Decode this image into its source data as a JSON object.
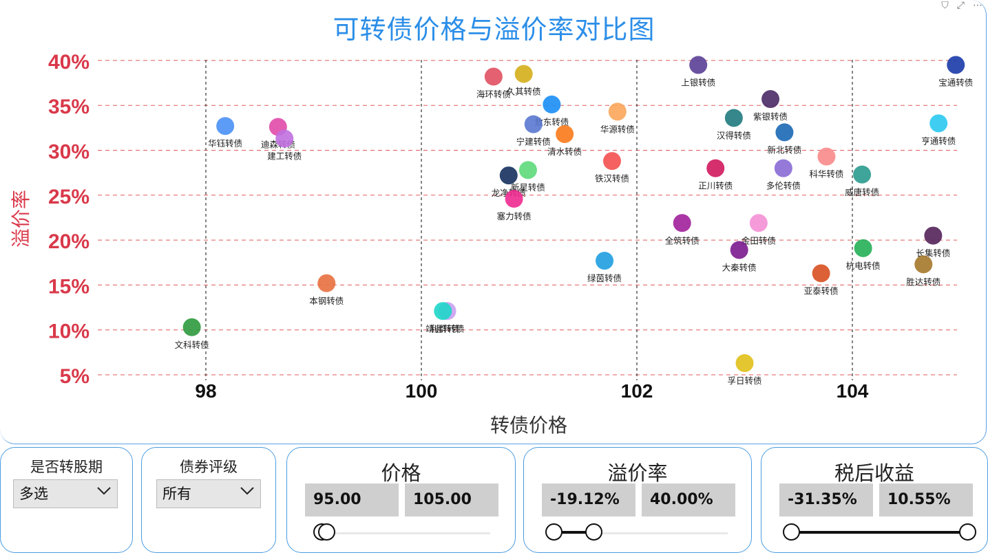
{
  "title": "可转债价格与溢价率对比图",
  "toolbar": {
    "filter_icon": "filter-icon",
    "focus_icon": "focus-mode-icon",
    "more_icon": "more-options-icon"
  },
  "colors": {
    "title": "#2b8ee8",
    "axis_y": "#d9394a",
    "grid": "#e05a5a",
    "vline": "#333333",
    "panel_border": "#4a9be0"
  },
  "chart_data": {
    "type": "scatter",
    "title": "可转债价格与溢价率对比图",
    "xlabel": "转债价格",
    "ylabel": "溢价率",
    "xlim": [
      96.5,
      105
    ],
    "ylim": [
      4,
      41
    ],
    "x_ticks": [
      98,
      100,
      102,
      104
    ],
    "x_tick_labels": [
      "98",
      "100",
      "102",
      "104"
    ],
    "y_ticks": [
      5,
      10,
      15,
      20,
      25,
      30,
      35,
      40
    ],
    "y_tick_labels": [
      "5%",
      "10%",
      "15%",
      "20%",
      "25%",
      "30%",
      "35%",
      "40%"
    ],
    "grid": true,
    "points": [
      {
        "name": "文科转债",
        "x": 97.87,
        "y": 10.3,
        "color": "#2e9a3d"
      },
      {
        "name": "华钰转债",
        "x": 98.18,
        "y": 32.7,
        "color": "#4a90f5"
      },
      {
        "name": "迪森转债",
        "x": 98.67,
        "y": 32.6,
        "color": "#e04aa8"
      },
      {
        "name": "建工转债",
        "x": 98.73,
        "y": 31.3,
        "color": "#c070e0"
      },
      {
        "name": "本钢转债",
        "x": 99.12,
        "y": 15.2,
        "color": "#e87040"
      },
      {
        "name": "利群转债",
        "x": 100.24,
        "y": 12.1,
        "color": "#c9a0f0"
      },
      {
        "name": "靖远转债",
        "x": 100.2,
        "y": 12.1,
        "color": "#1ed6c8"
      },
      {
        "name": "海环转债",
        "x": 100.67,
        "y": 38.2,
        "color": "#e05060"
      },
      {
        "name": "久其转债",
        "x": 100.95,
        "y": 38.5,
        "color": "#d4ae1a"
      },
      {
        "name": "敖东转债",
        "x": 101.21,
        "y": 35.1,
        "color": "#1a8ef5"
      },
      {
        "name": "宁建转债",
        "x": 101.04,
        "y": 32.9,
        "color": "#5a78d0"
      },
      {
        "name": "清水转债",
        "x": 101.33,
        "y": 31.8,
        "color": "#f97a1a"
      },
      {
        "name": "华源转债",
        "x": 101.82,
        "y": 34.3,
        "color": "#fba65a"
      },
      {
        "name": "新星转债",
        "x": 100.99,
        "y": 27.8,
        "color": "#5ed97a"
      },
      {
        "name": "龙净转债",
        "x": 100.81,
        "y": 27.2,
        "color": "#15305e"
      },
      {
        "name": "铁汉转债",
        "x": 101.77,
        "y": 28.8,
        "color": "#f45050"
      },
      {
        "name": "塞力转债",
        "x": 100.86,
        "y": 24.6,
        "color": "#ee2a90"
      },
      {
        "name": "绿茵转债",
        "x": 101.7,
        "y": 17.7,
        "color": "#1f9ee0"
      },
      {
        "name": "上银转债",
        "x": 102.57,
        "y": 39.5,
        "color": "#5a3f96"
      },
      {
        "name": "宝通转债",
        "x": 104.96,
        "y": 39.5,
        "color": "#1a3aa8"
      },
      {
        "name": "紫银转债",
        "x": 103.24,
        "y": 35.7,
        "color": "#4a2a66"
      },
      {
        "name": "汉得转债",
        "x": 102.9,
        "y": 33.6,
        "color": "#1f7a7e"
      },
      {
        "name": "新北转债",
        "x": 103.37,
        "y": 32.0,
        "color": "#1a68b5"
      },
      {
        "name": "亨通转债",
        "x": 104.8,
        "y": 33.0,
        "color": "#2ac8f0"
      },
      {
        "name": "科华转债",
        "x": 103.76,
        "y": 29.3,
        "color": "#f98a8a"
      },
      {
        "name": "正川转债",
        "x": 102.73,
        "y": 28.0,
        "color": "#d0185e"
      },
      {
        "name": "多伦转债",
        "x": 103.36,
        "y": 28.0,
        "color": "#8a6ad5"
      },
      {
        "name": "威唐转债",
        "x": 104.09,
        "y": 27.3,
        "color": "#2a9a8e"
      },
      {
        "name": "全筑转债",
        "x": 102.42,
        "y": 21.9,
        "color": "#a0209a"
      },
      {
        "name": "金田转债",
        "x": 103.13,
        "y": 21.9,
        "color": "#f590d5"
      },
      {
        "name": "大秦转债",
        "x": 102.95,
        "y": 18.9,
        "color": "#7a1a8e"
      },
      {
        "name": "长集转债",
        "x": 104.75,
        "y": 20.5,
        "color": "#53235a"
      },
      {
        "name": "杭电转债",
        "x": 104.1,
        "y": 19.1,
        "color": "#25b058"
      },
      {
        "name": "胜达转债",
        "x": 104.66,
        "y": 17.3,
        "color": "#a5782a"
      },
      {
        "name": "亚泰转债",
        "x": 103.71,
        "y": 16.3,
        "color": "#d85020"
      },
      {
        "name": "孚日转债",
        "x": 103.0,
        "y": 6.3,
        "color": "#e0c01a"
      }
    ]
  },
  "slicers": {
    "conversion": {
      "title": "是否转股期",
      "value": "多选"
    },
    "rating": {
      "title": "债券评级",
      "value": "所有"
    },
    "price": {
      "title": "价格",
      "min": "95.00",
      "max": "105.00",
      "min_pos": 0.0,
      "max_pos": 0.03
    },
    "premium": {
      "title": "溢价率",
      "min": "-19.12%",
      "max": "40.00%",
      "min_pos": 0.0,
      "max_pos": 0.23
    },
    "yield": {
      "title": "税后收益",
      "min": "-31.35%",
      "max": "10.55%",
      "min_pos": 0.0,
      "max_pos": 1.0
    }
  }
}
